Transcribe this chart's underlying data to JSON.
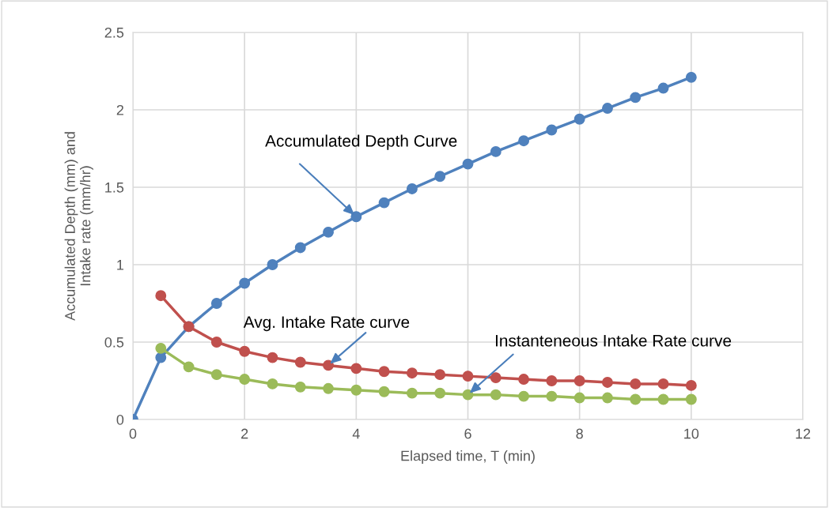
{
  "chart_data": {
    "type": "line",
    "xlabel": "Elapsed time, T (min)",
    "ylabel": "Accumulated Depth (mm) and\nIntake rate (mm/hr)",
    "xlim": [
      0,
      12
    ],
    "xticks": [
      0,
      2,
      4,
      6,
      8,
      10,
      12
    ],
    "ylim": [
      0,
      2.5
    ],
    "yticks": [
      0,
      0.5,
      1,
      1.5,
      2,
      2.5
    ],
    "grid": true,
    "marker": "circle",
    "line_style": "solid",
    "series": [
      {
        "color": "#4f81bd",
        "x": [
          0,
          0.5,
          1,
          1.5,
          2,
          2.5,
          3,
          3.5,
          4,
          4.5,
          5,
          5.5,
          6,
          6.5,
          7,
          7.5,
          8,
          8.5,
          9,
          9.5,
          10
        ],
        "values": [
          0,
          0.4,
          0.6,
          0.75,
          0.88,
          1.0,
          1.11,
          1.21,
          1.31,
          1.4,
          1.49,
          1.57,
          1.65,
          1.73,
          1.8,
          1.87,
          1.94,
          2.01,
          2.08,
          2.14,
          2.21
        ]
      },
      {
        "color": "#c0504d",
        "x": [
          0.5,
          1,
          1.5,
          2,
          2.5,
          3,
          3.5,
          4,
          4.5,
          5,
          5.5,
          6,
          6.5,
          7,
          7.5,
          8,
          8.5,
          9,
          9.5,
          10
        ],
        "values": [
          0.8,
          0.6,
          0.5,
          0.44,
          0.4,
          0.37,
          0.35,
          0.33,
          0.31,
          0.3,
          0.29,
          0.28,
          0.27,
          0.26,
          0.25,
          0.25,
          0.24,
          0.23,
          0.23,
          0.22
        ]
      },
      {
        "color": "#9bbb59",
        "x": [
          0.5,
          1,
          1.5,
          2,
          2.5,
          3,
          3.5,
          4,
          4.5,
          5,
          5.5,
          6,
          6.5,
          7,
          7.5,
          8,
          8.5,
          9,
          9.5,
          10
        ],
        "values": [
          0.46,
          0.34,
          0.29,
          0.26,
          0.23,
          0.21,
          0.2,
          0.19,
          0.18,
          0.17,
          0.17,
          0.16,
          0.16,
          0.15,
          0.15,
          0.14,
          0.14,
          0.13,
          0.13,
          0.13
        ]
      }
    ],
    "annotations": [
      {
        "text": "Accumulated Depth Curve",
        "x": 4,
        "y": 1.31
      },
      {
        "text": "Avg. Intake Rate curve",
        "x": 3.5,
        "y": 0.35
      },
      {
        "text": "Instanteneous Intake Rate curve",
        "x": 6,
        "y": 0.16
      }
    ]
  }
}
